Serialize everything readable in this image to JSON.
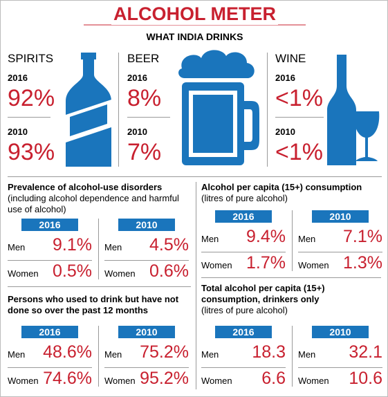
{
  "header": {
    "title": "ALCOHOL METER",
    "subtitle": "WHAT INDIA DRINKS"
  },
  "drinks": [
    {
      "name": "SPIRITS",
      "years": [
        {
          "year": "2016",
          "value": "92%"
        },
        {
          "year": "2010",
          "value": "93%"
        }
      ]
    },
    {
      "name": "BEER",
      "years": [
        {
          "year": "2016",
          "value": "8%"
        },
        {
          "year": "2010",
          "value": "7%"
        }
      ]
    },
    {
      "name": "WINE",
      "years": [
        {
          "year": "2016",
          "value": "<1%"
        },
        {
          "year": "2010",
          "value": "<1%"
        }
      ]
    }
  ],
  "panels": [
    {
      "title": "Prevalence of alcohol-use disorders",
      "note": "(including alcohol dependence and harmful use of alcohol)",
      "tables": [
        {
          "year": "2016",
          "rows": [
            [
              "Men",
              "9.1%"
            ],
            [
              "Women",
              "0.5%"
            ]
          ]
        },
        {
          "year": "2010",
          "rows": [
            [
              "Men",
              "4.5%"
            ],
            [
              "Women",
              "0.6%"
            ]
          ]
        }
      ]
    },
    {
      "title": "Alcohol per capita (15+) consumption",
      "note": "(litres of pure alcohol)",
      "tables": [
        {
          "year": "2016",
          "rows": [
            [
              "Men",
              "9.4%"
            ],
            [
              "Women",
              "1.7%"
            ]
          ]
        },
        {
          "year": "2010",
          "rows": [
            [
              "Men",
              "7.1%"
            ],
            [
              "Women",
              "1.3%"
            ]
          ]
        }
      ]
    },
    {
      "title": "Persons who used to drink but have not done so over the past 12 months",
      "tables": [
        {
          "year": "2016",
          "rows": [
            [
              "Men",
              "48.6%"
            ],
            [
              "Women",
              "74.6%"
            ]
          ]
        },
        {
          "year": "2010",
          "rows": [
            [
              "Men",
              "75.2%"
            ],
            [
              "Women",
              "95.2%"
            ]
          ]
        }
      ]
    },
    {
      "title": "Total alcohol per capita (15+) consumption, drinkers only",
      "note": "(litres of pure alcohol)",
      "tables": [
        {
          "year": "2016",
          "rows": [
            [
              "Men",
              "18.3"
            ],
            [
              "Women",
              "6.6"
            ]
          ]
        },
        {
          "year": "2010",
          "rows": [
            [
              "Men",
              "32.1"
            ],
            [
              "Women",
              "10.6"
            ]
          ]
        }
      ]
    }
  ]
}
